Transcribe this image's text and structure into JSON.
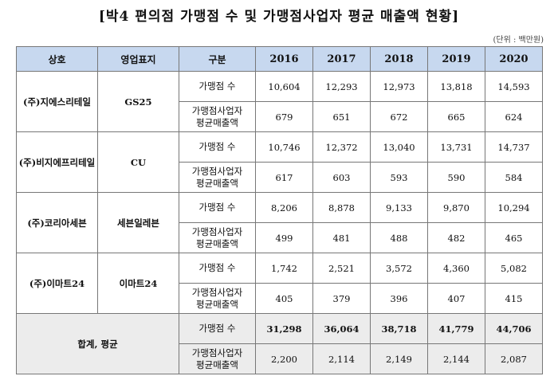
{
  "title": "[박4 편의점 가맹점 수 및 가맹점사업자 평균 매출액 현황]",
  "unit": "(단위 : 백만원)",
  "headers": {
    "company": "상호",
    "brand": "영업표지",
    "category": "구분",
    "years": [
      "2016",
      "2017",
      "2018",
      "2019",
      "2020"
    ]
  },
  "rows": [
    {
      "company": "(주)지에스리테일",
      "brand": "GS25",
      "cat1": "가맹점 수",
      "cat2a": "가맹점사업자",
      "cat2b": "평균매출액",
      "stores": [
        "10,604",
        "12,293",
        "12,973",
        "13,818",
        "14,593"
      ],
      "sales": [
        "679",
        "651",
        "672",
        "665",
        "624"
      ]
    },
    {
      "company": "(주)비지에프리테일",
      "brand": "CU",
      "cat1": "가맹점 수",
      "cat2a": "가맹점사업자",
      "cat2b": "평균매출액",
      "stores": [
        "10,746",
        "12,372",
        "13,040",
        "13,731",
        "14,737"
      ],
      "sales": [
        "617",
        "603",
        "593",
        "590",
        "584"
      ]
    },
    {
      "company": "(주)코리아세븐",
      "brand": "세븐일레븐",
      "cat1": "가맹점 수",
      "cat2a": "가맹점사업자",
      "cat2b": "평균매출액",
      "stores": [
        "8,206",
        "8,878",
        "9,133",
        "9,870",
        "10,294"
      ],
      "sales": [
        "499",
        "481",
        "488",
        "482",
        "465"
      ]
    },
    {
      "company": "(주)이마트24",
      "brand": "이마트24",
      "cat1": "가맹점 수",
      "cat2a": "가맹점사업자",
      "cat2b": "평균매출액",
      "stores": [
        "1,742",
        "2,521",
        "3,572",
        "4,360",
        "5,082"
      ],
      "sales": [
        "405",
        "379",
        "396",
        "407",
        "415"
      ]
    }
  ],
  "total": {
    "label": "합계, 평균",
    "cat1": "가맹점 수",
    "cat2a": "가맹점사업자",
    "cat2b": "평균매출액",
    "stores": [
      "31,298",
      "36,064",
      "38,718",
      "41,779",
      "44,706"
    ],
    "sales": [
      "2,200",
      "2,114",
      "2,149",
      "2,144",
      "2,087"
    ]
  }
}
